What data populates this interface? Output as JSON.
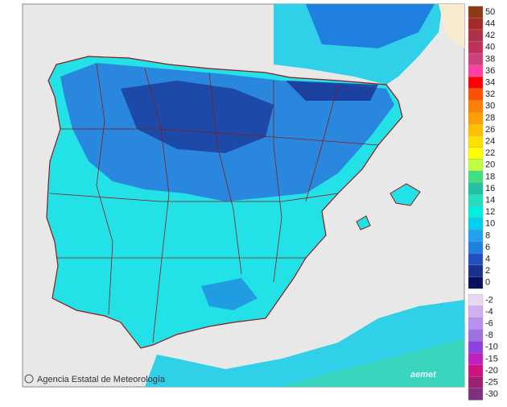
{
  "legend": {
    "items": [
      {
        "label": "50",
        "color": "#8b3a12"
      },
      {
        "label": "44",
        "color": "#a52a2a"
      },
      {
        "label": "42",
        "color": "#b03045"
      },
      {
        "label": "40",
        "color": "#c0305a"
      },
      {
        "label": "38",
        "color": "#d04080"
      },
      {
        "label": "36",
        "color": "#ff40a0"
      },
      {
        "label": "34",
        "color": "#ff0000"
      },
      {
        "label": "32",
        "color": "#ff5000"
      },
      {
        "label": "30",
        "color": "#ff8000"
      },
      {
        "label": "28",
        "color": "#ffa000"
      },
      {
        "label": "26",
        "color": "#ffc000"
      },
      {
        "label": "24",
        "color": "#ffe000"
      },
      {
        "label": "22",
        "color": "#ffff00"
      },
      {
        "label": "20",
        "color": "#c0ff40"
      },
      {
        "label": "18",
        "color": "#40e080"
      },
      {
        "label": "16",
        "color": "#20c0a0"
      },
      {
        "label": "14",
        "color": "#20e0c0"
      },
      {
        "label": "12",
        "color": "#00f0e0"
      },
      {
        "label": "10",
        "color": "#00d0f0"
      },
      {
        "label": "8",
        "color": "#20a0f0"
      },
      {
        "label": "6",
        "color": "#2080e0"
      },
      {
        "label": "4",
        "color": "#2050c0"
      },
      {
        "label": "2",
        "color": "#1a3090"
      },
      {
        "label": "0",
        "color": "#0a1060"
      },
      {
        "label": "-2",
        "color": "#e8d8f4"
      },
      {
        "label": "-4",
        "color": "#d0b0f0"
      },
      {
        "label": "-6",
        "color": "#b890f0"
      },
      {
        "label": "-8",
        "color": "#a070e0"
      },
      {
        "label": "-10",
        "color": "#9040e0"
      },
      {
        "label": "-15",
        "color": "#c020c0"
      },
      {
        "label": "-20",
        "color": "#d01080"
      },
      {
        "label": "-25",
        "color": "#a02070"
      },
      {
        "label": "-30",
        "color": "#803080"
      }
    ]
  },
  "footer": {
    "attribution": "Agencia Estatal de Meteorología",
    "logo": "aemet"
  }
}
